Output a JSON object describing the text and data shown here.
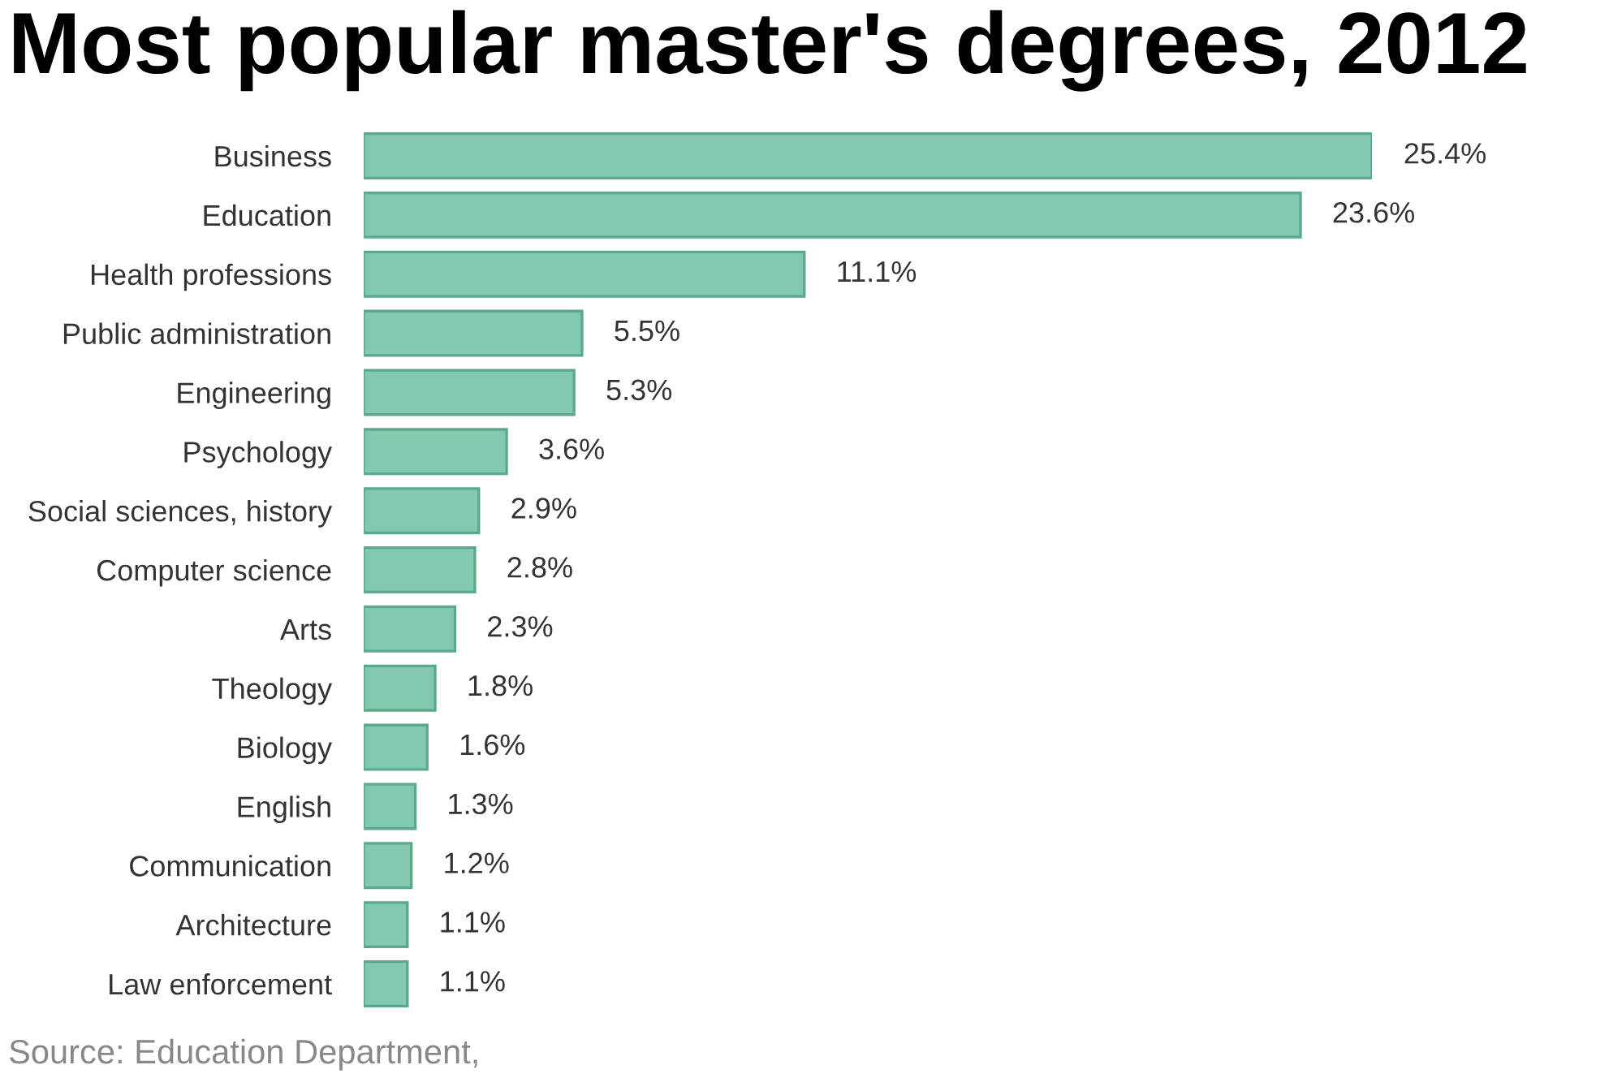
{
  "chart_data": {
    "type": "bar",
    "orientation": "horizontal",
    "title": "Most popular master's degrees, 2012",
    "categories": [
      "Business",
      "Education",
      "Health professions",
      "Public administration",
      "Engineering",
      "Psychology",
      "Social sciences, history",
      "Computer science",
      "Arts",
      "Theology",
      "Biology",
      "English",
      "Communication",
      "Architecture",
      "Law enforcement"
    ],
    "values": [
      25.4,
      23.6,
      11.1,
      5.5,
      5.3,
      3.6,
      2.9,
      2.8,
      2.3,
      1.8,
      1.6,
      1.3,
      1.2,
      1.1,
      1.1
    ],
    "color": "#83c9b0",
    "value_labels": [
      "25.4%",
      "23.6%",
      "11.1%",
      "5.5%",
      "5.3%",
      "3.6%",
      "2.9%",
      "2.8%",
      "2.3%",
      "1.8%",
      "1.6%",
      "1.3%",
      "1.2%",
      "1.1%",
      "1.1%"
    ],
    "tick_labels": "y",
    "grid": false,
    "legend": false,
    "annotations": [
      "Source: Education Department,"
    ]
  }
}
